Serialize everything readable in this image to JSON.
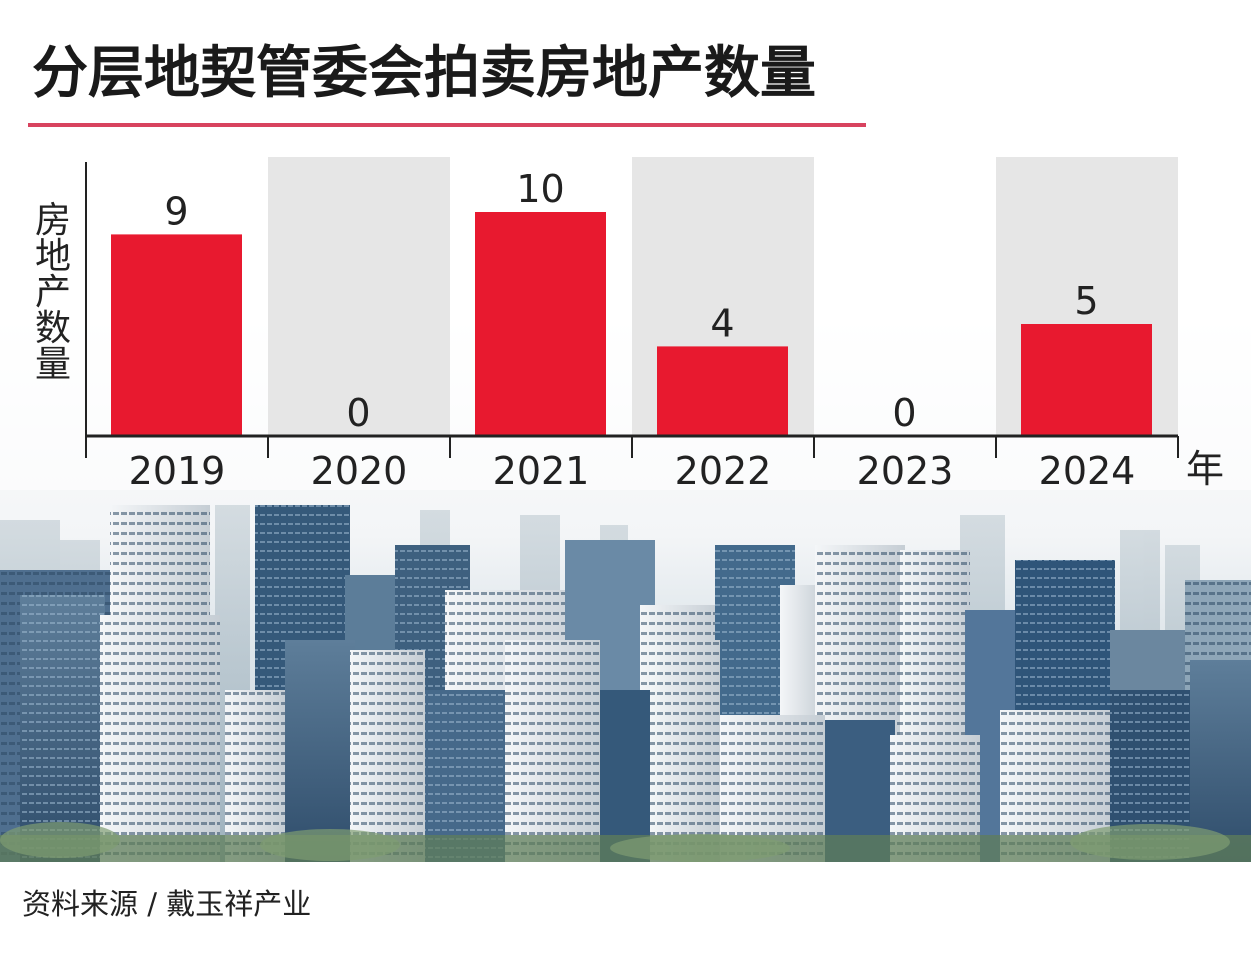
{
  "title": "分层地契管委会拍卖房地产数量",
  "source": "资料来源 / 戴玉祥产业",
  "colors": {
    "bar": "#e8192f",
    "title_rule": "#d8435f",
    "band": "#e6e6e6",
    "axis": "#222222"
  },
  "chart_data": {
    "type": "bar",
    "title": "分层地契管委会拍卖房地产数量",
    "xlabel": "年",
    "ylabel": "房地产数量",
    "categories": [
      "2019",
      "2020",
      "2021",
      "2022",
      "2023",
      "2024"
    ],
    "values": [
      9,
      0,
      10,
      4,
      0,
      5
    ],
    "data_labels": [
      "9",
      "0",
      "10",
      "4",
      "0",
      "5"
    ],
    "ylim": [
      0,
      12
    ],
    "grid": false,
    "legend": "none",
    "alternating_bands": true,
    "background_photo": "city-skyline"
  }
}
